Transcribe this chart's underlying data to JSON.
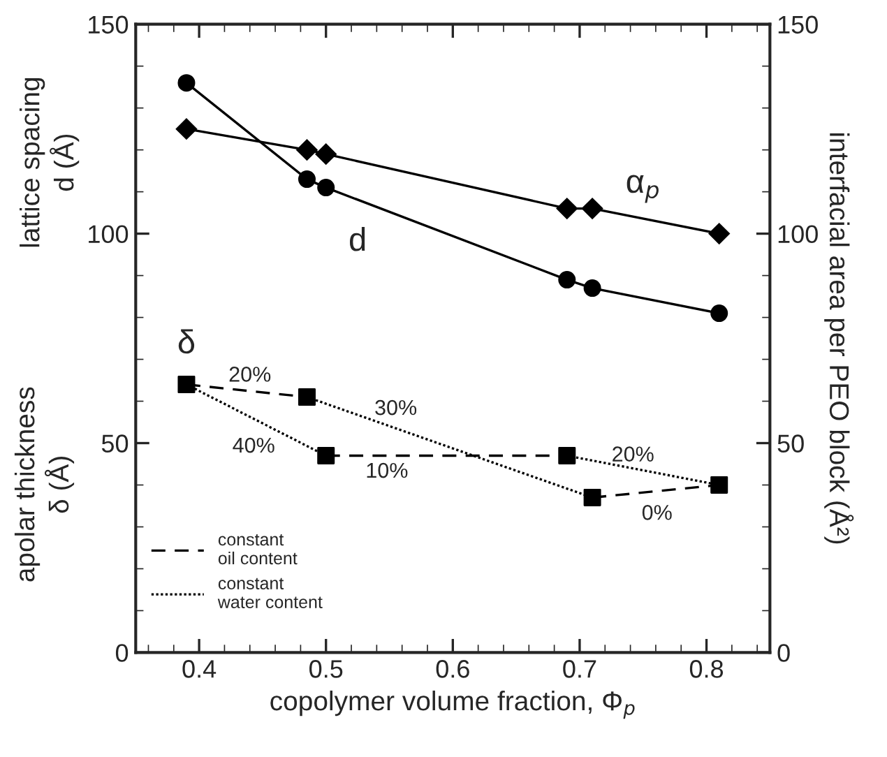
{
  "chart_data": {
    "type": "line",
    "xlabel": "copolymer volume fraction, Φ$_{p}$",
    "ylabel": "lattice spacing\nd (Å)",
    "y2label": "interfacial area per PEO block (Å²)",
    "xlim": [
      0.35,
      0.85
    ],
    "xticks": [
      0.4,
      0.5,
      0.6,
      0.7,
      0.8
    ],
    "ylim": [
      0,
      150
    ],
    "yticks": [
      0,
      50,
      100,
      150
    ],
    "y2lim": [
      0,
      150
    ],
    "y2ticks": [
      0,
      50,
      100,
      150
    ],
    "grid": false,
    "legend": "bottom left",
    "series": [
      {
        "marker": "circle",
        "line_style": "solid",
        "color": "#000000",
        "x": [
          0.39,
          0.485,
          0.5,
          0.69,
          0.71,
          0.81
        ],
        "values": [
          136,
          113,
          111,
          89,
          87,
          81
        ]
      },
      {
        "marker": "diamond",
        "line_style": "solid",
        "color": "#000000",
        "axis": "y2",
        "x": [
          0.39,
          0.485,
          0.5,
          0.69,
          0.71,
          0.81
        ],
        "values": [
          125,
          120,
          119,
          106,
          106,
          100
        ]
      },
      {
        "type": "line",
        "marker": "none",
        "line_style": "dashed",
        "color": "#000000",
        "name": "constant\noil content",
        "x": [
          0.39,
          0.485
        ],
        "values": [
          64,
          61
        ]
      },
      {
        "type": "line",
        "marker": "none",
        "line_style": "dashed",
        "color": "#000000",
        "x": [
          0.5,
          0.69
        ],
        "values": [
          47,
          47
        ]
      },
      {
        "type": "line",
        "marker": "none",
        "line_style": "dashed",
        "color": "#000000",
        "x": [
          0.71,
          0.81
        ],
        "values": [
          37,
          40
        ]
      },
      {
        "type": "line",
        "marker": "none",
        "line_style": "dotted",
        "color": "#000000",
        "name": "constant\nwater content",
        "x": [
          0.39,
          0.5
        ],
        "values": [
          64,
          47
        ]
      },
      {
        "type": "line",
        "marker": "none",
        "line_style": "dotted",
        "color": "#000000",
        "x": [
          0.485,
          0.71
        ],
        "values": [
          61,
          37
        ]
      },
      {
        "type": "line",
        "marker": "none",
        "line_style": "dotted",
        "color": "#000000",
        "x": [
          0.69,
          0.81
        ],
        "values": [
          47,
          40
        ]
      },
      {
        "type": "scatter",
        "marker": "square",
        "color": "#000000",
        "x": [
          0.39,
          0.485,
          0.5,
          0.69,
          0.71,
          0.81
        ],
        "values": [
          64,
          61,
          47,
          47,
          37,
          40
        ]
      }
    ],
    "annotations": [
      "apolar thickness\nδ (Å)",
      "d",
      "α$_{p}$",
      "δ",
      "20%",
      "30%",
      "40%",
      "10%",
      "20%",
      "0%"
    ]
  }
}
